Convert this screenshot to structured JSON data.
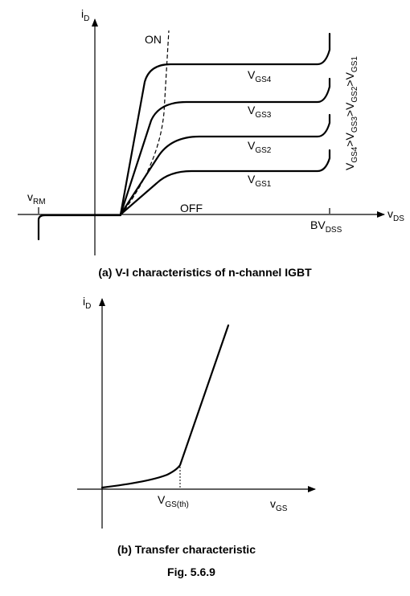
{
  "figure": {
    "number": "Fig.  5.6.9",
    "vi": {
      "caption": "(a) V-I characteristics of n-channel IGBT",
      "y_axis": {
        "main": "i",
        "sub": "D"
      },
      "x_axis": {
        "main": "v",
        "sub": "DS"
      },
      "on_label": "ON",
      "off_label": "OFF",
      "vrm": {
        "main": "v",
        "sub": "RM"
      },
      "bvdss": {
        "main": "BV",
        "sub": "DSS"
      },
      "curves": [
        {
          "main": "V",
          "sub": "GS4"
        },
        {
          "main": "V",
          "sub": "GS3"
        },
        {
          "main": "V",
          "sub": "GS2"
        },
        {
          "main": "V",
          "sub": "GS1"
        }
      ],
      "inequality": {
        "parts": [
          "V",
          "GS4",
          ">V",
          "GS3",
          ">V",
          "GS2",
          ">V",
          "GS1"
        ]
      }
    },
    "transfer": {
      "caption": "(b) Transfer characteristic",
      "y_axis": {
        "main": "i",
        "sub": "D"
      },
      "x_axis": {
        "main": "v",
        "sub": "GS"
      },
      "threshold": {
        "main": "V",
        "sub": "GS(th)"
      }
    }
  }
}
